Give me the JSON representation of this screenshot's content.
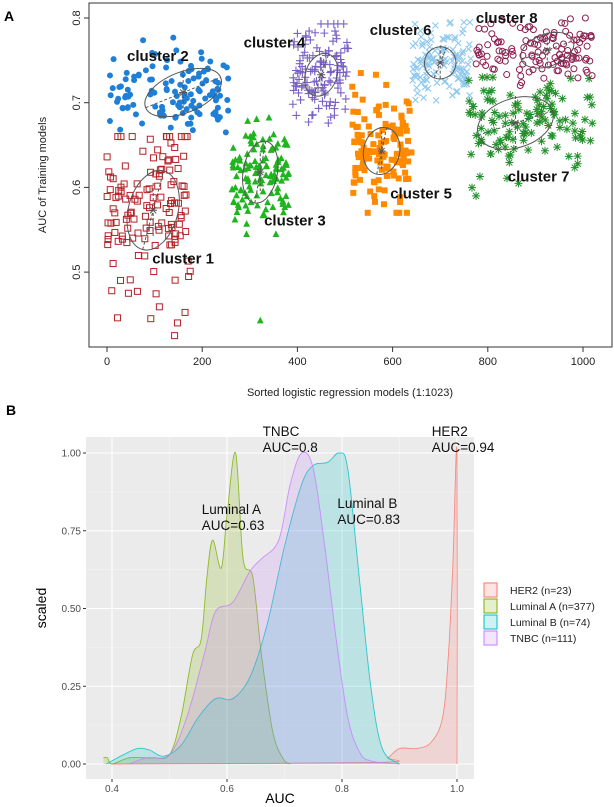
{
  "chart_data": [
    {
      "panel_label": "A",
      "type": "scatter",
      "xlabel": "Sorted logistic regression models (1:1023)",
      "ylabel": "AUC of Training models",
      "xlim": [
        -38,
        1061
      ],
      "ylim": [
        0.412,
        0.818
      ],
      "xticks": [
        0,
        200,
        400,
        600,
        800,
        1000
      ],
      "yticks": [
        "0.5",
        "0.6",
        "0.7",
        "0.8"
      ],
      "grid": false,
      "clusters": [
        {
          "name": "cluster 1",
          "color": "#b52025",
          "marker": "open-square",
          "x_range": [
            0,
            175
          ],
          "y_range": [
            0.43,
            0.66
          ],
          "center": [
            97,
            0.573
          ],
          "ellipse_radii": [
            52,
            0.048
          ],
          "ellipse_tilt_deg": -75,
          "label_pos": [
            95,
            0.516
          ],
          "outliers": [
            [
              10,
              0.478
            ],
            [
              22,
              0.446
            ],
            [
              45,
              0.475
            ],
            [
              92,
              0.445
            ],
            [
              110,
              0.459
            ],
            [
              148,
              0.44
            ],
            [
              142,
              0.425
            ]
          ]
        },
        {
          "name": "cluster 2",
          "color": "#1f7fd6",
          "marker": "filled-circle",
          "x_range": [
            5,
            255
          ],
          "y_range": [
            0.665,
            0.778
          ],
          "center": [
            160,
            0.712
          ],
          "ellipse_radii": [
            85,
            0.024
          ],
          "ellipse_tilt_deg": -22,
          "label_pos": [
            42,
            0.755
          ],
          "outliers": []
        },
        {
          "name": "cluster 3",
          "color": "#1fb51f",
          "marker": "filled-triangle",
          "x_range": [
            262,
            385
          ],
          "y_range": [
            0.545,
            0.69
          ],
          "center": [
            322,
            0.618
          ],
          "ellipse_radii": [
            36,
            0.037
          ],
          "ellipse_tilt_deg": -80,
          "label_pos": [
            330,
            0.561
          ],
          "outliers": [
            [
              322,
              0.443
            ]
          ]
        },
        {
          "name": "cluster 4",
          "color": "#7a62c4",
          "marker": "plus",
          "x_range": [
            390,
            510
          ],
          "y_range": [
            0.675,
            0.793
          ],
          "center": [
            450,
            0.733
          ],
          "ellipse_radii": [
            33,
            0.026
          ],
          "ellipse_tilt_deg": -70,
          "label_pos": [
            287,
            0.771
          ],
          "outliers": [
            [
              470,
              0.683
            ],
            [
              465,
              0.676
            ]
          ]
        },
        {
          "name": "cluster 5",
          "color": "#ff8a00",
          "marker": "filled-square",
          "x_range": [
            515,
            640
          ],
          "y_range": [
            0.57,
            0.735
          ],
          "center": [
            577,
            0.643
          ],
          "ellipse_radii": [
            38,
            0.028
          ],
          "ellipse_tilt_deg": -78,
          "label_pos": [
            595,
            0.593
          ],
          "outliers": [
            [
              565,
              0.733
            ]
          ]
        },
        {
          "name": "cluster 6",
          "color": "#8ec8ef",
          "marker": "cross",
          "x_range": [
            640,
            765
          ],
          "y_range": [
            0.7,
            0.795
          ],
          "center": [
            700,
            0.747
          ],
          "ellipse_radii": [
            33,
            0.019
          ],
          "ellipse_tilt_deg": -68,
          "label_pos": [
            552,
            0.786
          ],
          "outliers": []
        },
        {
          "name": "cluster 7",
          "color": "#22902a",
          "marker": "asterisk",
          "x_range": [
            760,
            1020
          ],
          "y_range": [
            0.59,
            0.73
          ],
          "center": [
            858,
            0.676
          ],
          "ellipse_radii": [
            82,
            0.029
          ],
          "ellipse_tilt_deg": -18,
          "label_pos": [
            842,
            0.613
          ],
          "outliers": []
        },
        {
          "name": "cluster 8",
          "color": "#8c1f50",
          "marker": "open-circle",
          "x_range": [
            775,
            1020
          ],
          "y_range": [
            0.72,
            0.8
          ],
          "center": [
            925,
            0.762
          ],
          "ellipse_radii": [
            58,
            0.019
          ],
          "ellipse_tilt_deg": -20,
          "label_pos": [
            775,
            0.8
          ],
          "outliers": []
        }
      ]
    },
    {
      "panel_label": "B",
      "type": "area",
      "xlabel": "AUC",
      "ylabel": "scaled",
      "xlim": [
        0.352,
        1.03
      ],
      "ylim": [
        -0.05,
        1.05
      ],
      "xticks": [
        "0.4",
        "0.6",
        "0.8",
        "1.0"
      ],
      "yticks": [
        "0.00",
        "0.25",
        "0.50",
        "0.75",
        "1.00"
      ],
      "grid": true,
      "legend_position": "right",
      "series": [
        {
          "name": "HER2 (n=23)",
          "color": "#f8766d",
          "points": [
            [
              0.4,
              0
            ],
            [
              0.86,
              0.005
            ],
            [
              0.88,
              0.02
            ],
            [
              0.9,
              0.05
            ],
            [
              0.93,
              0.05
            ],
            [
              0.955,
              0.07
            ],
            [
              0.975,
              0.15
            ],
            [
              0.985,
              0.35
            ],
            [
              0.993,
              0.65
            ],
            [
              1.0,
              1.0
            ],
            [
              1.0,
              0
            ]
          ]
        },
        {
          "name": "Luminal A (n=377)",
          "color": "#7cae00",
          "points": [
            [
              0.385,
              0.02
            ],
            [
              0.392,
              0.02
            ],
            [
              0.4,
              0
            ],
            [
              0.43,
              0.02
            ],
            [
              0.47,
              0.02
            ],
            [
              0.5,
              0.03
            ],
            [
              0.52,
              0.15
            ],
            [
              0.54,
              0.35
            ],
            [
              0.555,
              0.4
            ],
            [
              0.565,
              0.6
            ],
            [
              0.575,
              0.72
            ],
            [
              0.59,
              0.63
            ],
            [
              0.6,
              0.8
            ],
            [
              0.615,
              1.0
            ],
            [
              0.628,
              0.66
            ],
            [
              0.645,
              0.6
            ],
            [
              0.66,
              0.35
            ],
            [
              0.68,
              0.1
            ],
            [
              0.7,
              0.01
            ],
            [
              0.71,
              0
            ]
          ]
        },
        {
          "name": "Luminal B (n=74)",
          "color": "#00bfc4",
          "points": [
            [
              0.39,
              0
            ],
            [
              0.42,
              0.03
            ],
            [
              0.445,
              0.05
            ],
            [
              0.465,
              0.045
            ],
            [
              0.49,
              0.025
            ],
            [
              0.52,
              0.06
            ],
            [
              0.55,
              0.15
            ],
            [
              0.58,
              0.21
            ],
            [
              0.61,
              0.21
            ],
            [
              0.64,
              0.28
            ],
            [
              0.67,
              0.45
            ],
            [
              0.7,
              0.7
            ],
            [
              0.73,
              0.9
            ],
            [
              0.75,
              0.96
            ],
            [
              0.775,
              0.97
            ],
            [
              0.795,
              1.0
            ],
            [
              0.81,
              0.95
            ],
            [
              0.83,
              0.6
            ],
            [
              0.85,
              0.25
            ],
            [
              0.87,
              0.05
            ],
            [
              0.9,
              0
            ]
          ]
        },
        {
          "name": "TNBC (n=111)",
          "color": "#c77cff",
          "points": [
            [
              0.43,
              0
            ],
            [
              0.46,
              0.02
            ],
            [
              0.5,
              0.03
            ],
            [
              0.53,
              0.15
            ],
            [
              0.56,
              0.35
            ],
            [
              0.58,
              0.49
            ],
            [
              0.61,
              0.52
            ],
            [
              0.64,
              0.62
            ],
            [
              0.66,
              0.66
            ],
            [
              0.69,
              0.72
            ],
            [
              0.71,
              0.9
            ],
            [
              0.73,
              1.0
            ],
            [
              0.75,
              0.95
            ],
            [
              0.77,
              0.7
            ],
            [
              0.79,
              0.4
            ],
            [
              0.81,
              0.15
            ],
            [
              0.83,
              0.04
            ],
            [
              0.85,
              0.01
            ],
            [
              0.9,
              0
            ]
          ]
        }
      ],
      "annotations": [
        {
          "lines": [
            "Luminal A",
            "AUC=0.63"
          ],
          "pos": [
            0.556,
            0.82
          ]
        },
        {
          "lines": [
            "TNBC",
            "AUC=0.8"
          ],
          "pos": [
            0.662,
            1.07
          ]
        },
        {
          "lines": [
            "Luminal B",
            "AUC=0.83"
          ],
          "pos": [
            0.792,
            0.84
          ]
        },
        {
          "lines": [
            "HER2",
            "AUC=0.94"
          ],
          "pos": [
            0.956,
            1.07
          ]
        }
      ]
    }
  ]
}
